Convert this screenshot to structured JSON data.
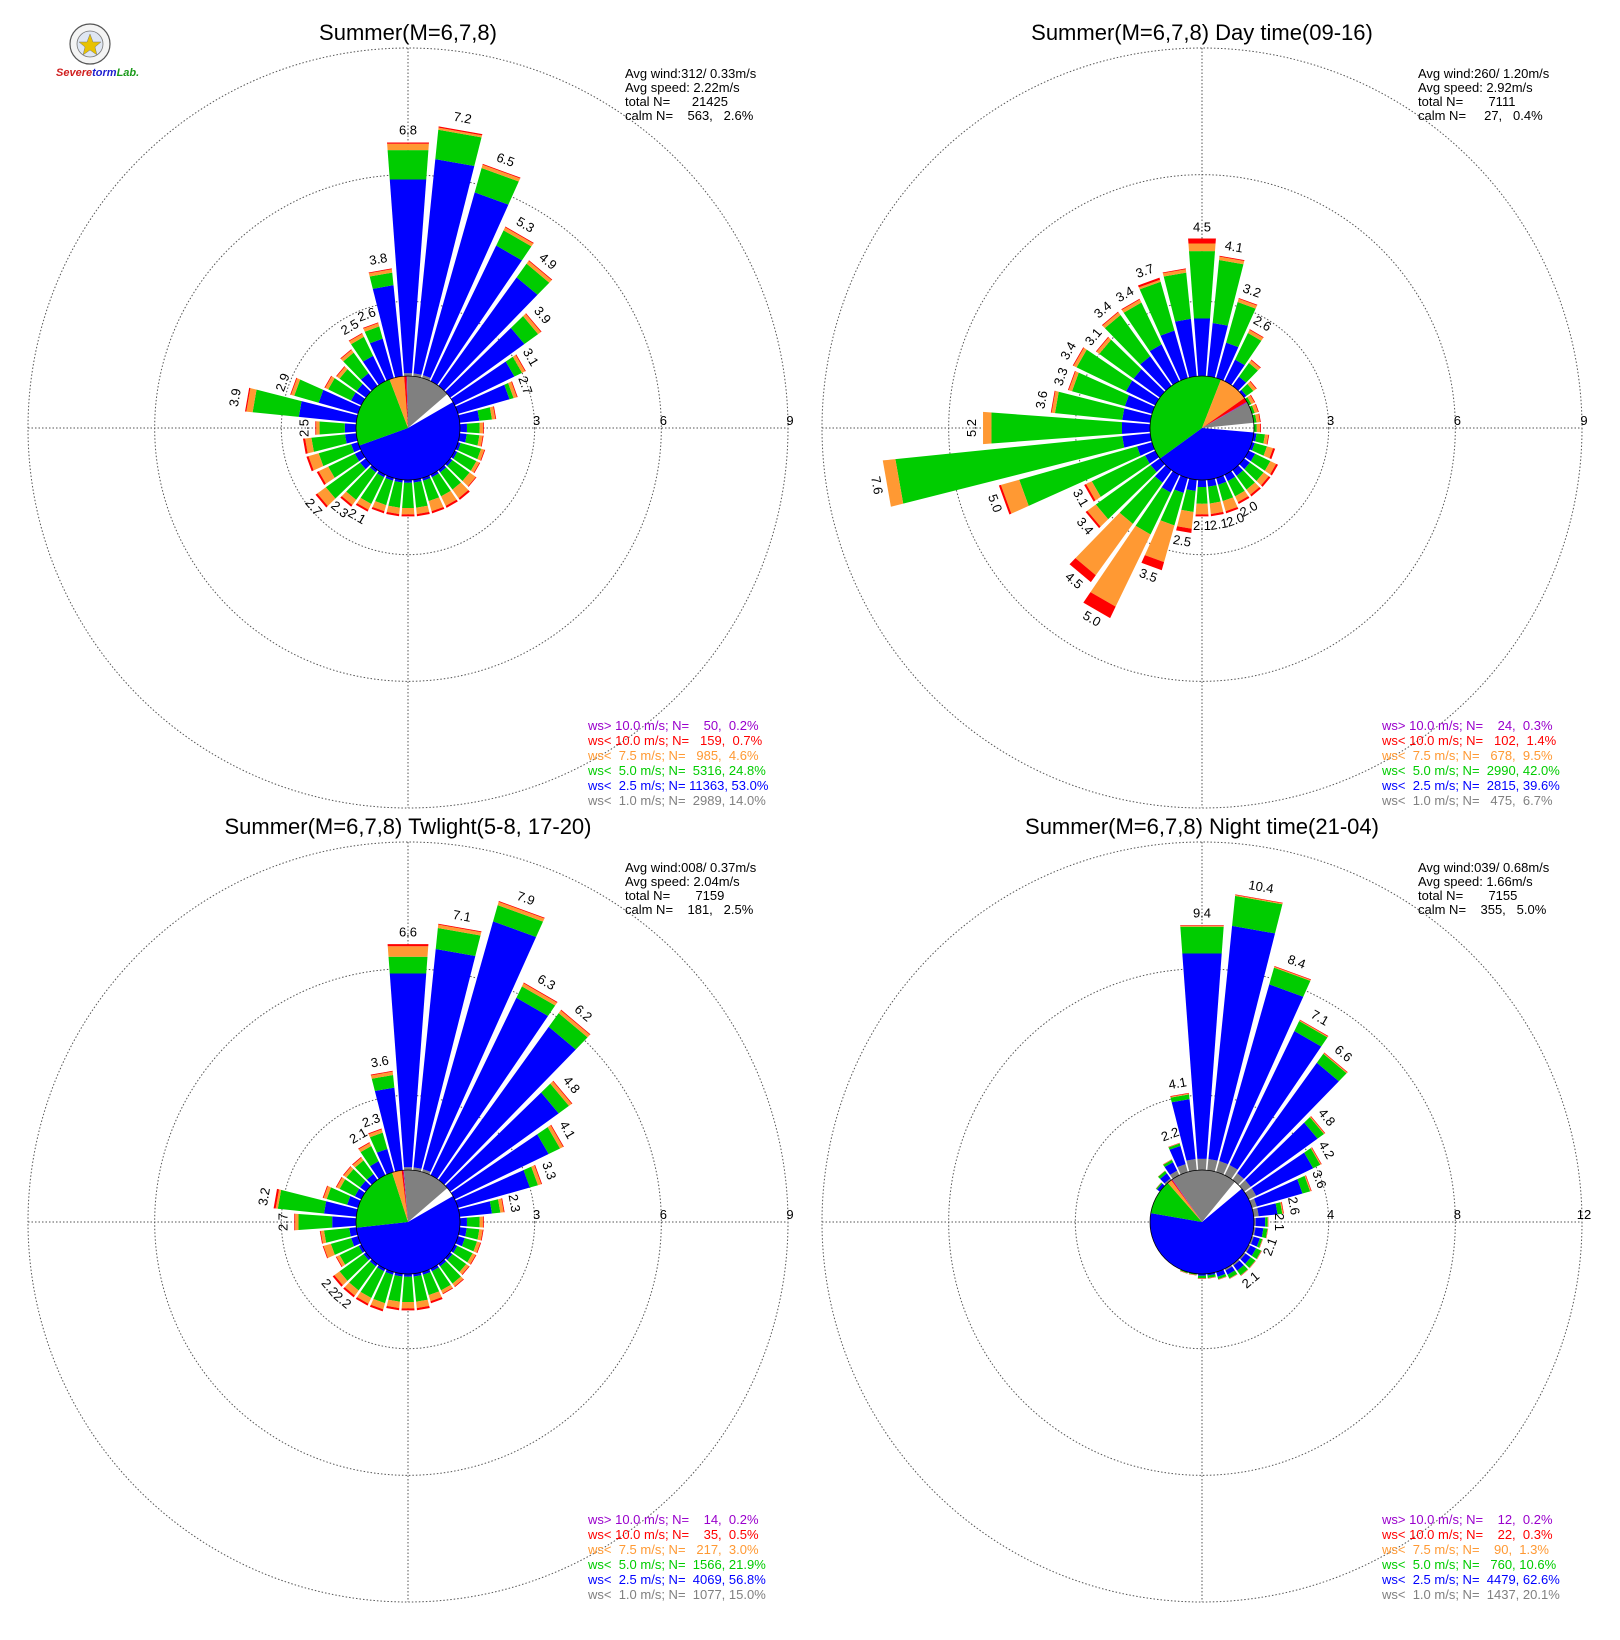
{
  "logo": {
    "text_parts": [
      {
        "text": "S",
        "color": "#d02020"
      },
      {
        "text": "evere",
        "color": "#d02020"
      },
      {
        "text": "torm",
        "color": "#1f1fd0"
      },
      {
        "text": "Lab.",
        "color": "#1a9a1a"
      }
    ]
  },
  "colors": {
    "gt10": "#9900cc",
    "lt10": "#ff0000",
    "lt7_5": "#ff9933",
    "lt5": "#00cc00",
    "lt2_5": "#0000ff",
    "lt1": "#808080",
    "calm": "#ffffff",
    "grid": "#555555"
  },
  "panels": [
    {
      "title": "Summer(M=6,7,8)",
      "stats": [
        "Avg wind:312/ 0.33m/s",
        "Avg speed: 2.22m/s",
        "total N=      21425",
        "calm N=    563,   2.6%"
      ],
      "rings": [
        "3",
        "6",
        "9"
      ],
      "legend": [
        {
          "text": "ws> 10.0 m/s; N=    50,  0.2%",
          "color": "#9900cc"
        },
        {
          "text": "ws< 10.0 m/s; N=   159,  0.7%",
          "color": "#ff0000"
        },
        {
          "text": "ws<  7.5 m/s; N=   985,  4.6%",
          "color": "#ff9933"
        },
        {
          "text": "ws<  5.0 m/s; N=  5316, 24.8%",
          "color": "#00cc00"
        },
        {
          "text": "ws<  2.5 m/s; N= 11363, 53.0%",
          "color": "#0000ff"
        },
        {
          "text": "ws<  1.0 m/s; N=  2989, 14.0%",
          "color": "#808080"
        }
      ],
      "bar_labels": [
        "6.8",
        "7.2",
        "6.5",
        "5.3",
        "4.9",
        "3.9",
        "3.1",
        "2.7",
        "3.9",
        "2.9",
        "2.5",
        "2.6",
        "3.8",
        "2.5",
        "2.3",
        "2.7",
        "2.1"
      ]
    },
    {
      "title": "Summer(M=6,7,8) Day time(09-16)",
      "stats": [
        "Avg wind:260/ 1.20m/s",
        "Avg speed: 2.92m/s",
        "total N=       7111",
        "calm N=     27,   0.4%"
      ],
      "rings": [
        "3",
        "6",
        "9"
      ],
      "legend": [
        {
          "text": "ws> 10.0 m/s; N=    24,  0.3%",
          "color": "#9900cc"
        },
        {
          "text": "ws< 10.0 m/s; N=   102,  1.4%",
          "color": "#ff0000"
        },
        {
          "text": "ws<  7.5 m/s; N=   678,  9.5%",
          "color": "#ff9933"
        },
        {
          "text": "ws<  5.0 m/s; N=  2990, 42.0%",
          "color": "#00cc00"
        },
        {
          "text": "ws<  2.5 m/s; N=  2815, 39.6%",
          "color": "#0000ff"
        },
        {
          "text": "ws<  1.0 m/s; N=   475,  6.7%",
          "color": "#808080"
        }
      ],
      "bar_labels": [
        "4.5",
        "4.1",
        "3.2",
        "2.6",
        "7.6",
        "5.2",
        "3.6",
        "3.3",
        "3.4",
        "3.1",
        "3.4",
        "3.4",
        "3.7",
        "5.0",
        "3.1",
        "3.4",
        "4.5",
        "5.0",
        "3.5",
        "2.5",
        "2.1",
        "2.1",
        "2.0",
        "2.0"
      ]
    },
    {
      "title": "Summer(M=6,7,8) Twlight(5-8, 17-20)",
      "stats": [
        "Avg wind:008/ 0.37m/s",
        "Avg speed: 2.04m/s",
        "total N=       7159",
        "calm N=    181,   2.5%"
      ],
      "rings": [
        "3",
        "6",
        "9"
      ],
      "legend": [
        {
          "text": "ws> 10.0 m/s; N=    14,  0.2%",
          "color": "#9900cc"
        },
        {
          "text": "ws< 10.0 m/s; N=    35,  0.5%",
          "color": "#ff0000"
        },
        {
          "text": "ws<  7.5 m/s; N=   217,  3.0%",
          "color": "#ff9933"
        },
        {
          "text": "ws<  5.0 m/s; N=  1566, 21.9%",
          "color": "#00cc00"
        },
        {
          "text": "ws<  2.5 m/s; N=  4069, 56.8%",
          "color": "#0000ff"
        },
        {
          "text": "ws<  1.0 m/s; N=  1077, 15.0%",
          "color": "#808080"
        }
      ],
      "bar_labels": [
        "6.6",
        "7.1",
        "7.9",
        "6.3",
        "6.2",
        "4.8",
        "4.1",
        "3.3",
        "2.3",
        "3.2",
        "2.7",
        "2.1",
        "2.3",
        "3.6",
        "2.2",
        "2.2"
      ]
    },
    {
      "title": "Summer(M=6,7,8) Night time(21-04)",
      "stats": [
        "Avg wind:039/ 0.68m/s",
        "Avg speed: 1.66m/s",
        "total N=       7155",
        "calm N=    355,   5.0%"
      ],
      "rings": [
        "4",
        "8",
        "12"
      ],
      "legend": [
        {
          "text": "ws> 10.0 m/s; N=    12,  0.2%",
          "color": "#9900cc"
        },
        {
          "text": "ws< 10.0 m/s; N=    22,  0.3%",
          "color": "#ff0000"
        },
        {
          "text": "ws<  7.5 m/s; N=    90,  1.3%",
          "color": "#ff9933"
        },
        {
          "text": "ws<  5.0 m/s; N=   760, 10.6%",
          "color": "#00cc00"
        },
        {
          "text": "ws<  2.5 m/s; N=  4479, 62.6%",
          "color": "#0000ff"
        },
        {
          "text": "ws<  1.0 m/s; N=  1437, 20.1%",
          "color": "#808080"
        }
      ],
      "bar_labels": [
        "9.4",
        "10.4",
        "8.4",
        "7.1",
        "6.6",
        "4.8",
        "4.2",
        "3.6",
        "2.6",
        "2.1",
        "2.1",
        "2.1",
        "4.1",
        "2.2"
      ]
    }
  ],
  "chart_data": [
    {
      "type": "wind_rose",
      "title": "Summer(M=6,7,8)",
      "directions_deg": [
        0,
        10,
        20,
        30,
        40,
        50,
        60,
        70,
        80,
        90,
        100,
        110,
        120,
        130,
        140,
        150,
        160,
        170,
        180,
        190,
        200,
        210,
        220,
        230,
        240,
        250,
        260,
        270,
        280,
        290,
        300,
        310,
        320,
        330,
        340,
        350
      ],
      "rmax": 9,
      "ticks": [
        3,
        6,
        9
      ],
      "totals": [
        6.8,
        7.2,
        6.5,
        5.3,
        4.9,
        3.9,
        3.1,
        2.7,
        2.1,
        1.8,
        1.8,
        1.9,
        1.9,
        2.0,
        2.1,
        2.1,
        2.1,
        2.1,
        2.1,
        2.1,
        2.1,
        2.2,
        2.3,
        2.7,
        2.4,
        2.5,
        2.5,
        2.2,
        3.9,
        2.9,
        2.2,
        2.1,
        2.3,
        2.5,
        2.6,
        3.8
      ],
      "gray": [
        1.3,
        1.3,
        1.3,
        1.2,
        1.2,
        1.1,
        1.1,
        1.1,
        1.1,
        1.1,
        1.1,
        1.1,
        1.1,
        1.1,
        1.1,
        1.1,
        1.1,
        1.1,
        1.1,
        1.1,
        1.1,
        1.1,
        1.1,
        1.1,
        1.1,
        1.1,
        1.1,
        1.1,
        1.1,
        1.1,
        1.1,
        1.1,
        1.1,
        1.1,
        1.1,
        1.2
      ],
      "blue": [
        5.9,
        6.4,
        5.8,
        4.8,
        4.4,
        3.4,
        2.8,
        2.5,
        1.7,
        1.4,
        1.4,
        1.3,
        1.3,
        1.3,
        1.3,
        1.3,
        1.3,
        1.3,
        1.3,
        1.3,
        1.3,
        1.3,
        1.3,
        1.4,
        1.4,
        1.4,
        1.5,
        1.5,
        2.6,
        2.2,
        1.5,
        1.5,
        1.6,
        1.9,
        2.2,
        3.4
      ],
      "green": [
        6.6,
        7.1,
        6.4,
        5.2,
        4.8,
        3.8,
        3.0,
        2.6,
        2.0,
        1.7,
        1.7,
        1.8,
        1.8,
        1.8,
        1.8,
        1.8,
        1.8,
        1.9,
        1.9,
        1.9,
        1.9,
        2.0,
        2.1,
        2.4,
        2.1,
        2.2,
        2.3,
        2.1,
        3.7,
        2.8,
        2.1,
        2.0,
        2.2,
        2.4,
        2.5,
        3.7
      ],
      "orange": [
        6.75,
        7.15,
        6.48,
        5.28,
        4.88,
        3.88,
        3.08,
        2.68,
        2.08,
        1.78,
        1.78,
        1.88,
        1.88,
        1.98,
        2.05,
        2.05,
        2.05,
        2.05,
        2.05,
        2.05,
        2.05,
        2.15,
        2.25,
        2.65,
        2.35,
        2.45,
        2.45,
        2.18,
        3.85,
        2.88,
        2.18,
        2.08,
        2.28,
        2.48,
        2.58,
        3.78
      ],
      "red": [
        6.78,
        7.18,
        6.5,
        5.3,
        4.9,
        3.9,
        3.1,
        2.7,
        2.1,
        1.8,
        1.8,
        1.9,
        1.9,
        2.0,
        2.1,
        2.1,
        2.1,
        2.1,
        2.1,
        2.1,
        2.1,
        2.2,
        2.3,
        2.7,
        2.4,
        2.5,
        2.5,
        2.2,
        3.88,
        2.9,
        2.2,
        2.1,
        2.3,
        2.5,
        2.6,
        3.8
      ],
      "pie": {
        "gray": 14.0,
        "blue": 53.0,
        "green": 24.8,
        "orange": 4.6,
        "red": 0.7,
        "purple": 0.2
      }
    },
    {
      "type": "wind_rose",
      "title": "Summer(M=6,7,8) Day time(09-16)",
      "rmax": 9,
      "ticks": [
        3,
        6,
        9
      ],
      "totals": [
        4.5,
        4.1,
        3.2,
        2.6,
        2.0,
        1.6,
        1.4,
        1.4,
        1.4,
        1.4,
        1.6,
        1.8,
        2.0,
        2.0,
        2.0,
        2.0,
        2.1,
        2.1,
        2.1,
        2.5,
        3.5,
        5.0,
        4.5,
        3.4,
        3.1,
        5.0,
        7.6,
        5.2,
        3.6,
        3.3,
        3.4,
        3.1,
        3.4,
        3.4,
        3.7,
        3.8
      ],
      "gray": [
        1.0,
        1.0,
        1.0,
        1.0,
        1.0,
        1.0,
        1.0,
        1.0,
        1.0,
        1.0,
        1.0,
        1.0,
        1.0,
        1.0,
        1.0,
        1.0,
        1.0,
        1.0,
        1.0,
        1.0,
        1.0,
        1.0,
        1.0,
        1.0,
        1.0,
        1.0,
        1.0,
        1.0,
        1.0,
        1.0,
        1.0,
        1.0,
        1.0,
        1.0,
        1.0,
        1.0
      ],
      "blue": [
        2.6,
        2.5,
        2.1,
        1.8,
        1.5,
        1.3,
        1.2,
        1.2,
        1.2,
        1.2,
        1.3,
        1.3,
        1.4,
        1.4,
        1.4,
        1.4,
        1.4,
        1.4,
        1.4,
        1.5,
        1.6,
        1.7,
        1.6,
        1.5,
        1.5,
        1.6,
        1.9,
        1.9,
        1.9,
        1.9,
        2.0,
        2.0,
        2.1,
        2.2,
        2.4,
        2.6
      ],
      "green": [
        4.2,
        4.0,
        3.1,
        2.5,
        1.9,
        1.5,
        1.3,
        1.3,
        1.3,
        1.3,
        1.5,
        1.6,
        1.8,
        1.8,
        1.8,
        1.8,
        1.8,
        1.8,
        1.8,
        2.0,
        2.4,
        2.8,
        2.8,
        3.1,
        2.9,
        4.5,
        7.3,
        5.0,
        3.5,
        3.2,
        3.3,
        3.0,
        3.3,
        3.3,
        3.6,
        3.7
      ],
      "orange": [
        4.38,
        4.08,
        3.18,
        2.58,
        1.98,
        1.58,
        1.38,
        1.38,
        1.38,
        1.38,
        1.58,
        1.75,
        1.95,
        1.95,
        1.95,
        1.95,
        2.05,
        2.05,
        2.05,
        2.4,
        3.3,
        4.7,
        4.3,
        3.35,
        3.05,
        4.95,
        7.6,
        5.2,
        3.58,
        3.28,
        3.38,
        3.08,
        3.38,
        3.38,
        3.65,
        3.78
      ],
      "red": [
        4.5,
        4.1,
        3.2,
        2.6,
        2.0,
        1.6,
        1.4,
        1.4,
        1.4,
        1.4,
        1.6,
        1.8,
        2.0,
        2.0,
        2.0,
        2.0,
        2.1,
        2.1,
        2.1,
        2.5,
        3.5,
        5.0,
        4.5,
        3.4,
        3.1,
        5.0,
        7.6,
        5.2,
        3.6,
        3.3,
        3.4,
        3.1,
        3.4,
        3.4,
        3.7,
        3.8
      ],
      "pie": {
        "gray": 6.7,
        "blue": 39.6,
        "green": 42.0,
        "orange": 9.5,
        "red": 1.4,
        "purple": 0.3
      }
    },
    {
      "type": "wind_rose",
      "title": "Summer(M=6,7,8) Twlight(5-8, 17-20)",
      "rmax": 9,
      "ticks": [
        3,
        6,
        9
      ],
      "totals": [
        6.6,
        7.1,
        7.9,
        6.3,
        6.2,
        4.8,
        4.1,
        3.3,
        2.3,
        1.8,
        1.8,
        1.8,
        1.8,
        1.8,
        1.9,
        1.9,
        2.0,
        2.1,
        2.1,
        2.1,
        2.2,
        2.2,
        2.2,
        2.2,
        1.9,
        2.1,
        2.1,
        2.7,
        3.2,
        2.1,
        1.9,
        1.9,
        1.9,
        2.1,
        2.3,
        3.6
      ],
      "gray": [
        1.3,
        1.3,
        1.3,
        1.2,
        1.2,
        1.1,
        1.1,
        1.1,
        1.1,
        1.1,
        1.1,
        1.1,
        1.1,
        1.1,
        1.1,
        1.1,
        1.1,
        1.1,
        1.1,
        1.1,
        1.1,
        1.1,
        1.1,
        1.1,
        1.1,
        1.1,
        1.1,
        1.1,
        1.1,
        1.1,
        1.1,
        1.1,
        1.1,
        1.1,
        1.1,
        1.2
      ],
      "blue": [
        5.9,
        6.5,
        7.4,
        5.9,
        5.7,
        4.4,
        3.7,
        3.0,
        2.0,
        1.4,
        1.4,
        1.4,
        1.3,
        1.3,
        1.3,
        1.3,
        1.3,
        1.3,
        1.3,
        1.3,
        1.3,
        1.3,
        1.3,
        1.3,
        1.3,
        1.4,
        1.4,
        1.8,
        2.0,
        1.5,
        1.4,
        1.4,
        1.4,
        1.6,
        1.8,
        3.2
      ],
      "green": [
        6.3,
        7.0,
        7.8,
        6.2,
        6.1,
        4.7,
        4.0,
        3.2,
        2.2,
        1.7,
        1.7,
        1.7,
        1.7,
        1.7,
        1.8,
        1.8,
        1.8,
        1.9,
        1.9,
        1.9,
        2.0,
        2.0,
        2.0,
        2.0,
        1.8,
        1.9,
        2.0,
        2.6,
        3.1,
        2.0,
        1.8,
        1.8,
        1.8,
        2.0,
        2.2,
        3.5
      ],
      "orange": [
        6.55,
        7.08,
        7.88,
        6.28,
        6.18,
        4.78,
        4.08,
        3.28,
        2.28,
        1.78,
        1.78,
        1.78,
        1.78,
        1.78,
        1.88,
        1.88,
        1.95,
        2.05,
        2.05,
        2.05,
        2.15,
        2.15,
        2.15,
        2.15,
        1.88,
        2.08,
        2.08,
        2.68,
        3.15,
        2.08,
        1.88,
        1.88,
        1.88,
        2.08,
        2.28,
        3.58
      ],
      "red": [
        6.6,
        7.1,
        7.9,
        6.3,
        6.2,
        4.8,
        4.1,
        3.3,
        2.3,
        1.8,
        1.8,
        1.8,
        1.8,
        1.8,
        1.9,
        1.9,
        2.0,
        2.1,
        2.1,
        2.1,
        2.2,
        2.2,
        2.2,
        2.2,
        1.9,
        2.1,
        2.1,
        2.7,
        3.2,
        2.1,
        1.9,
        1.9,
        1.9,
        2.1,
        2.3,
        3.6
      ],
      "pie": {
        "gray": 15.0,
        "blue": 56.8,
        "green": 21.9,
        "orange": 3.0,
        "red": 0.5,
        "purple": 0.2
      }
    },
    {
      "type": "wind_rose",
      "title": "Summer(M=6,7,8) Night time(21-04)",
      "rmax": 12,
      "ticks": [
        4,
        8,
        12
      ],
      "totals": [
        9.4,
        10.4,
        8.4,
        7.1,
        6.6,
        4.8,
        4.2,
        3.6,
        2.6,
        2.1,
        2.1,
        2.0,
        2.1,
        2.1,
        2.1,
        2.0,
        1.9,
        1.8,
        1.8,
        1.7,
        1.7,
        1.6,
        1.6,
        1.6,
        1.6,
        1.6,
        1.5,
        1.5,
        1.4,
        1.5,
        1.6,
        1.8,
        2.0,
        2.2,
        2.6,
        4.1
      ],
      "gray": [
        2.0,
        2.0,
        2.0,
        2.0,
        1.9,
        1.9,
        1.9,
        1.8,
        1.8,
        1.7,
        1.7,
        1.7,
        1.7,
        1.7,
        1.7,
        1.7,
        1.6,
        1.6,
        1.6,
        1.5,
        1.5,
        1.5,
        1.5,
        1.5,
        1.5,
        1.5,
        1.4,
        1.4,
        1.4,
        1.4,
        1.5,
        1.6,
        1.7,
        1.8,
        1.9,
        2.0
      ],
      "blue": [
        8.5,
        9.4,
        7.8,
        6.7,
        6.2,
        4.5,
        3.9,
        3.3,
        2.4,
        2.0,
        1.95,
        1.9,
        1.9,
        1.9,
        1.9,
        1.85,
        1.8,
        1.7,
        1.7,
        1.6,
        1.6,
        1.55,
        1.55,
        1.55,
        1.55,
        1.5,
        1.45,
        1.45,
        1.38,
        1.45,
        1.55,
        1.75,
        1.9,
        2.1,
        2.5,
        3.9
      ],
      "green": [
        9.35,
        10.35,
        8.35,
        7.05,
        6.55,
        4.75,
        4.15,
        3.55,
        2.55,
        2.08,
        2.08,
        1.98,
        2.08,
        2.08,
        2.08,
        1.98,
        1.88,
        1.78,
        1.78,
        1.68,
        1.68,
        1.58,
        1.58,
        1.58,
        1.58,
        1.58,
        1.48,
        1.48,
        1.39,
        1.49,
        1.59,
        1.79,
        1.99,
        2.18,
        2.58,
        4.05
      ],
      "orange": [
        9.38,
        10.38,
        8.38,
        7.08,
        6.58,
        4.78,
        4.18,
        3.58,
        2.58,
        2.09,
        2.09,
        1.99,
        2.09,
        2.09,
        2.09,
        1.99,
        1.89,
        1.79,
        1.79,
        1.69,
        1.69,
        1.59,
        1.59,
        1.59,
        1.59,
        1.59,
        1.49,
        1.49,
        1.395,
        1.495,
        1.595,
        1.795,
        1.995,
        2.19,
        2.59,
        4.08
      ],
      "red": [
        9.4,
        10.4,
        8.4,
        7.1,
        6.6,
        4.8,
        4.2,
        3.6,
        2.6,
        2.1,
        2.1,
        2.0,
        2.1,
        2.1,
        2.1,
        2.0,
        1.9,
        1.8,
        1.8,
        1.7,
        1.7,
        1.6,
        1.6,
        1.6,
        1.6,
        1.6,
        1.5,
        1.5,
        1.4,
        1.5,
        1.6,
        1.8,
        2.0,
        2.2,
        2.6,
        4.1
      ],
      "pie": {
        "gray": 20.1,
        "blue": 62.6,
        "green": 10.6,
        "orange": 1.3,
        "red": 0.3,
        "purple": 0.2
      }
    }
  ]
}
